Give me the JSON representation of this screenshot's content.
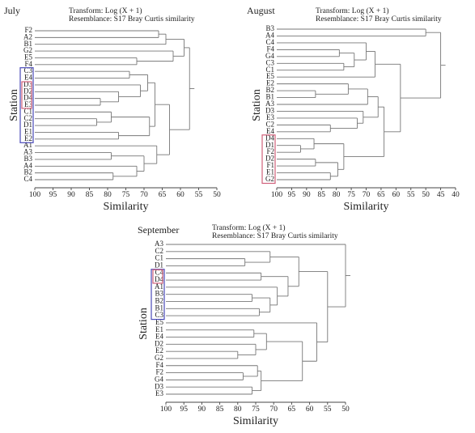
{
  "chart_data": [
    {
      "type": "dendrogram",
      "title": "July",
      "transform": "Transform: Log (X + 1)",
      "resemblance": "Resemblance: S17 Bray Curtis similarity",
      "x_label": "Similarity",
      "y_label": "Station",
      "xlim": [
        100,
        50
      ],
      "xticks": [
        100,
        95,
        90,
        85,
        80,
        75,
        70,
        65,
        60,
        55,
        50
      ],
      "boxes": [
        {
          "from": "C3",
          "to": "E2",
          "color": "#4a4ab8"
        },
        {
          "from": "D3",
          "to": "E3",
          "color": "#d0607a"
        }
      ],
      "tree": {
        "similarity": 57.5,
        "children": [
          {
            "similarity": 59,
            "children": [
              {
                "similarity": 64,
                "children": [
                  {
                    "similarity": 66,
                    "children": [
                      "F2",
                      "A2"
                    ]
                  },
                  "B1"
                ]
              },
              {
                "similarity": 62,
                "children": [
                  "G2",
                  {
                    "similarity": 72,
                    "children": [
                      "E5",
                      "F4"
                    ]
                  }
                ]
              }
            ]
          },
          {
            "similarity": 63,
            "children": [
              {
                "similarity": 67,
                "children": [
                  {
                    "similarity": 69,
                    "children": [
                      {
                        "similarity": 74,
                        "children": [
                          "C3",
                          "E4"
                        ]
                      },
                      {
                        "similarity": 71,
                        "children": [
                          "D3",
                          {
                            "similarity": 77,
                            "children": [
                              "D2",
                              {
                                "similarity": 82,
                                "children": [
                                  "D4",
                                  "E3"
                                ]
                              }
                            ]
                          }
                        ]
                      }
                    ]
                  },
                  {
                    "similarity": 68.5,
                    "children": [
                      {
                        "similarity": 79,
                        "children": [
                          "C1",
                          {
                            "similarity": 83,
                            "children": [
                              "C2",
                              "D1"
                            ]
                          }
                        ]
                      },
                      {
                        "similarity": 77,
                        "children": [
                          "E1",
                          "E2"
                        ]
                      }
                    ]
                  }
                ]
              },
              {
                "similarity": 66.5,
                "children": [
                  "A1",
                  {
                    "similarity": 70,
                    "children": [
                      {
                        "similarity": 79,
                        "children": [
                          "A3",
                          "B3"
                        ]
                      },
                      {
                        "similarity": 72,
                        "children": [
                          "A4",
                          {
                            "similarity": 78.5,
                            "children": [
                              "B2",
                              "C4"
                            ]
                          }
                        ]
                      }
                    ]
                  }
                ]
              }
            ]
          }
        ]
      }
    },
    {
      "type": "dendrogram",
      "title": "August",
      "transform": "Transform: Log (X + 1)",
      "resemblance": "Resemblance: S17 Bray Curtis similarity",
      "x_label": "Similarity",
      "y_label": "Station",
      "xlim": [
        100,
        40
      ],
      "xticks": [
        100,
        95,
        90,
        85,
        80,
        75,
        70,
        65,
        60,
        55,
        50,
        45,
        40
      ],
      "boxes": [
        {
          "from": "D4",
          "to": "G2",
          "color": "#d0607a"
        }
      ],
      "tree": {
        "similarity": 45,
        "children": [
          {
            "similarity": 50,
            "children": [
              "B3",
              "A4"
            ]
          },
          {
            "similarity": 58.5,
            "children": [
              {
                "similarity": 67,
                "children": [
                  {
                    "similarity": 70,
                    "children": [
                      "C4",
                      {
                        "similarity": 74,
                        "children": [
                          {
                            "similarity": 79,
                            "children": [
                              "F4",
                              "G4"
                            ]
                          },
                          {
                            "similarity": 77.5,
                            "children": [
                              "C3",
                              "C1"
                            ]
                          }
                        ]
                      }
                    ]
                  },
                  "E5"
                ]
              },
              {
                "similarity": 64,
                "children": [
                  {
                    "similarity": 66,
                    "children": [
                      {
                        "similarity": 69.5,
                        "children": [
                          {
                            "similarity": 76,
                            "children": [
                              "E2",
                              {
                                "similarity": 87,
                                "children": [
                                  "B2",
                                  "B1"
                                ]
                              }
                            ]
                          },
                          "A3"
                        ]
                      },
                      {
                        "similarity": 71,
                        "children": [
                          "D3",
                          {
                            "similarity": 73,
                            "children": [
                              "E3",
                              {
                                "similarity": 82,
                                "children": [
                                  "C2",
                                  "E4"
                                ]
                              }
                            ]
                          }
                        ]
                      }
                    ]
                  },
                  {
                    "similarity": 77.5,
                    "children": [
                      {
                        "similarity": 87.5,
                        "children": [
                          "D4",
                          {
                            "similarity": 92,
                            "children": [
                              "D1",
                              "F2"
                            ]
                          }
                        ]
                      },
                      {
                        "similarity": 79.5,
                        "children": [
                          {
                            "similarity": 87,
                            "children": [
                              "D2",
                              "F1"
                            ]
                          },
                          {
                            "similarity": 82,
                            "children": [
                              "E1",
                              "G2"
                            ]
                          }
                        ]
                      }
                    ]
                  }
                ]
              }
            ]
          }
        ]
      }
    },
    {
      "type": "dendrogram",
      "title": "September",
      "transform": "Transform: Log (X + 1)",
      "resemblance": "Resemblance: S17 Bray Curtis similarity",
      "x_label": "Similarity",
      "y_label": "Station",
      "xlim": [
        100,
        50
      ],
      "xticks": [
        100,
        95,
        90,
        85,
        80,
        75,
        70,
        65,
        60,
        55,
        50
      ],
      "boxes": [
        {
          "from": "C4",
          "to": "C3",
          "color": "#4a4ab8"
        },
        {
          "from": "C4",
          "to": "D4",
          "color": "#d0607a"
        }
      ],
      "tree": {
        "similarity": 50,
        "children": [
          "A3",
          {
            "similarity": 55,
            "children": [
              {
                "similarity": 63,
                "children": [
                  {
                    "similarity": 71,
                    "children": [
                      "C2",
                      {
                        "similarity": 78,
                        "children": [
                          "C1",
                          "D1"
                        ]
                      }
                    ]
                  },
                  {
                    "similarity": 66,
                    "children": [
                      {
                        "similarity": 73.5,
                        "children": [
                          "C4",
                          "D4"
                        ]
                      },
                      {
                        "similarity": 69,
                        "children": [
                          "A1",
                          {
                            "similarity": 71,
                            "children": [
                              {
                                "similarity": 76,
                                "children": [
                                  "B3",
                                  "B2"
                                ]
                              },
                              {
                                "similarity": 74,
                                "children": [
                                  "B1",
                                  "C3"
                                ]
                              }
                            ]
                          }
                        ]
                      }
                    ]
                  }
                ]
              },
              {
                "similarity": 58,
                "children": [
                  "E5",
                  {
                    "similarity": 62,
                    "children": [
                      {
                        "similarity": 72,
                        "children": [
                          {
                            "similarity": 75.5,
                            "children": [
                              "E1",
                              "E4"
                            ]
                          },
                          {
                            "similarity": 75,
                            "children": [
                              "D2",
                              {
                                "similarity": 80,
                                "children": [
                                  "E2",
                                  "G2"
                                ]
                              }
                            ]
                          }
                        ]
                      },
                      {
                        "similarity": 73.5,
                        "children": [
                          {
                            "similarity": 74.5,
                            "children": [
                              "F4",
                              {
                                "similarity": 78.5,
                                "children": [
                                  "F2",
                                  "G4"
                                ]
                              }
                            ]
                          },
                          {
                            "similarity": 76,
                            "children": [
                              "D3",
                              "E3"
                            ]
                          }
                        ]
                      }
                    ]
                  }
                ]
              }
            ]
          }
        ]
      }
    }
  ]
}
